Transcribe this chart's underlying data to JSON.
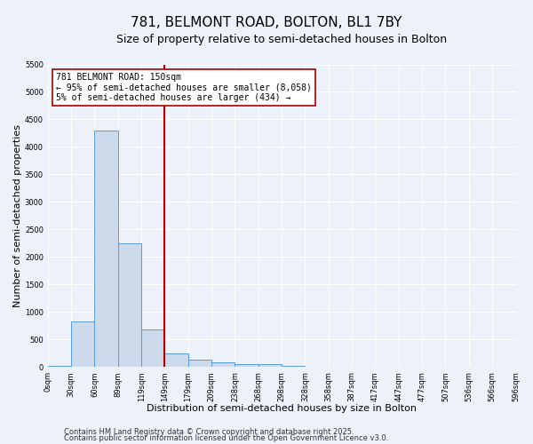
{
  "title": "781, BELMONT ROAD, BOLTON, BL1 7BY",
  "subtitle": "Size of property relative to semi-detached houses in Bolton",
  "xlabel": "Distribution of semi-detached houses by size in Bolton",
  "ylabel": "Number of semi-detached properties",
  "bar_values": [
    30,
    830,
    4300,
    2250,
    680,
    250,
    130,
    80,
    60,
    60,
    30,
    0,
    0,
    0,
    0,
    0,
    0,
    0,
    0,
    0
  ],
  "tick_labels": [
    "0sqm",
    "30sqm",
    "60sqm",
    "89sqm",
    "119sqm",
    "149sqm",
    "179sqm",
    "209sqm",
    "238sqm",
    "268sqm",
    "298sqm",
    "328sqm",
    "358sqm",
    "387sqm",
    "417sqm",
    "447sqm",
    "477sqm",
    "507sqm",
    "536sqm",
    "566sqm",
    "596sqm"
  ],
  "n_bins": 20,
  "bar_color": "#ccdaeb",
  "bar_edge_color": "#5b9bd5",
  "vline_bin": 5,
  "vline_color": "#aa0000",
  "annotation_line1": "781 BELMONT ROAD: 150sqm",
  "annotation_line2": "← 95% of semi-detached houses are smaller (8,058)",
  "annotation_line3": "5% of semi-detached houses are larger (434) →",
  "ylim": [
    0,
    5500
  ],
  "yticks": [
    0,
    500,
    1000,
    1500,
    2000,
    2500,
    3000,
    3500,
    4000,
    4500,
    5000,
    5500
  ],
  "footer1": "Contains HM Land Registry data © Crown copyright and database right 2025.",
  "footer2": "Contains public sector information licensed under the Open Government Licence v3.0.",
  "bg_color": "#edf2fa",
  "grid_color": "#ffffff",
  "title_fontsize": 11,
  "subtitle_fontsize": 9,
  "axis_label_fontsize": 8,
  "tick_fontsize": 6,
  "annotation_fontsize": 7,
  "footer_fontsize": 6
}
